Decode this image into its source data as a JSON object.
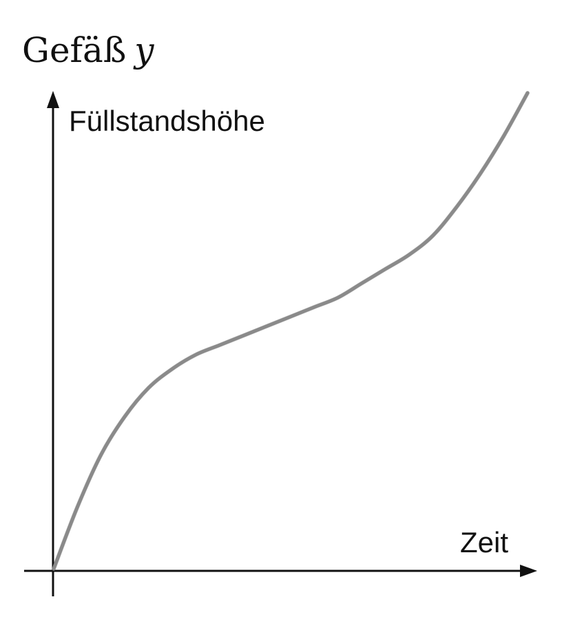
{
  "title": {
    "text": "Gefäß",
    "variable": "y"
  },
  "chart_data": {
    "type": "line",
    "title": "Gefäß y",
    "ylabel": "Füllstandshöhe",
    "xlabel": "Zeit",
    "xlim": [
      0,
      1
    ],
    "ylim": [
      0,
      1
    ],
    "grid": false,
    "series": [
      {
        "x": [
          0,
          0.05,
          0.1,
          0.15,
          0.2,
          0.25,
          0.3,
          0.35,
          0.4,
          0.45,
          0.5,
          0.55,
          0.6,
          0.65,
          0.7,
          0.75,
          0.8,
          0.85,
          0.9,
          0.95,
          1.0
        ],
        "y": [
          0,
          0.13,
          0.24,
          0.32,
          0.38,
          0.42,
          0.45,
          0.47,
          0.49,
          0.51,
          0.53,
          0.55,
          0.57,
          0.6,
          0.63,
          0.66,
          0.7,
          0.76,
          0.83,
          0.91,
          1.0
        ],
        "color": "#8a8a8a"
      }
    ],
    "axis_color": "#111111"
  }
}
